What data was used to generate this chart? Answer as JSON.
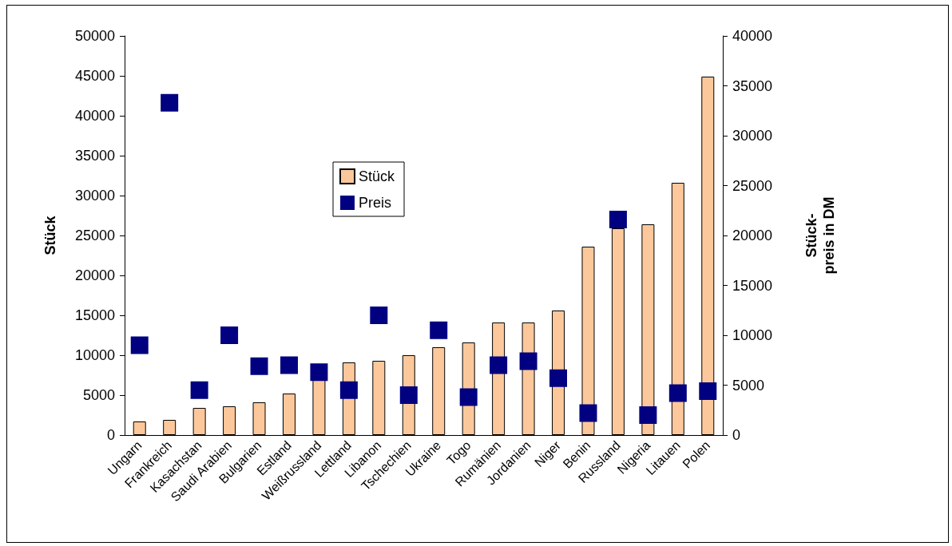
{
  "chart_data": {
    "type": "bar",
    "categories": [
      "Ungarn",
      "Frankreich",
      "Kasachstan",
      "Saudi Arabien",
      "Bulgarien",
      "Estland",
      "Weißrussland",
      "Lettland",
      "Libanon",
      "Tschechien",
      "Ukraine",
      "Togo",
      "Rumänien",
      "Jordanien",
      "Niger",
      "Benin",
      "Russland",
      "Nigeria",
      "Litauen",
      "Polen"
    ],
    "series": [
      {
        "name": "Stück",
        "color": "#fcc89b",
        "values": [
          1700,
          1900,
          3400,
          3600,
          4100,
          5200,
          7000,
          9100,
          9300,
          10000,
          11000,
          11600,
          14100,
          14100,
          15600,
          23600,
          25900,
          26400,
          31600,
          44900
        ]
      },
      {
        "name": "Preis",
        "type": "scatter",
        "axis": "y2",
        "color": "#000080",
        "values": [
          9000,
          33300,
          4500,
          10000,
          6900,
          7000,
          6300,
          4500,
          12000,
          4000,
          10500,
          3800,
          7000,
          7400,
          5700,
          2200,
          21600,
          2000,
          4200,
          4400
        ]
      }
    ],
    "ylabel": "Stück",
    "y2label": "Stück-\npreis in DM",
    "ylim": [
      0,
      50000
    ],
    "yticks": [
      0,
      5000,
      10000,
      15000,
      20000,
      25000,
      30000,
      35000,
      40000,
      45000,
      50000
    ],
    "y2lim": [
      0,
      40000
    ],
    "y2ticks": [
      0,
      5000,
      10000,
      15000,
      20000,
      25000,
      30000,
      35000,
      40000
    ],
    "marker": "square",
    "grid": false,
    "legend": "top left"
  }
}
